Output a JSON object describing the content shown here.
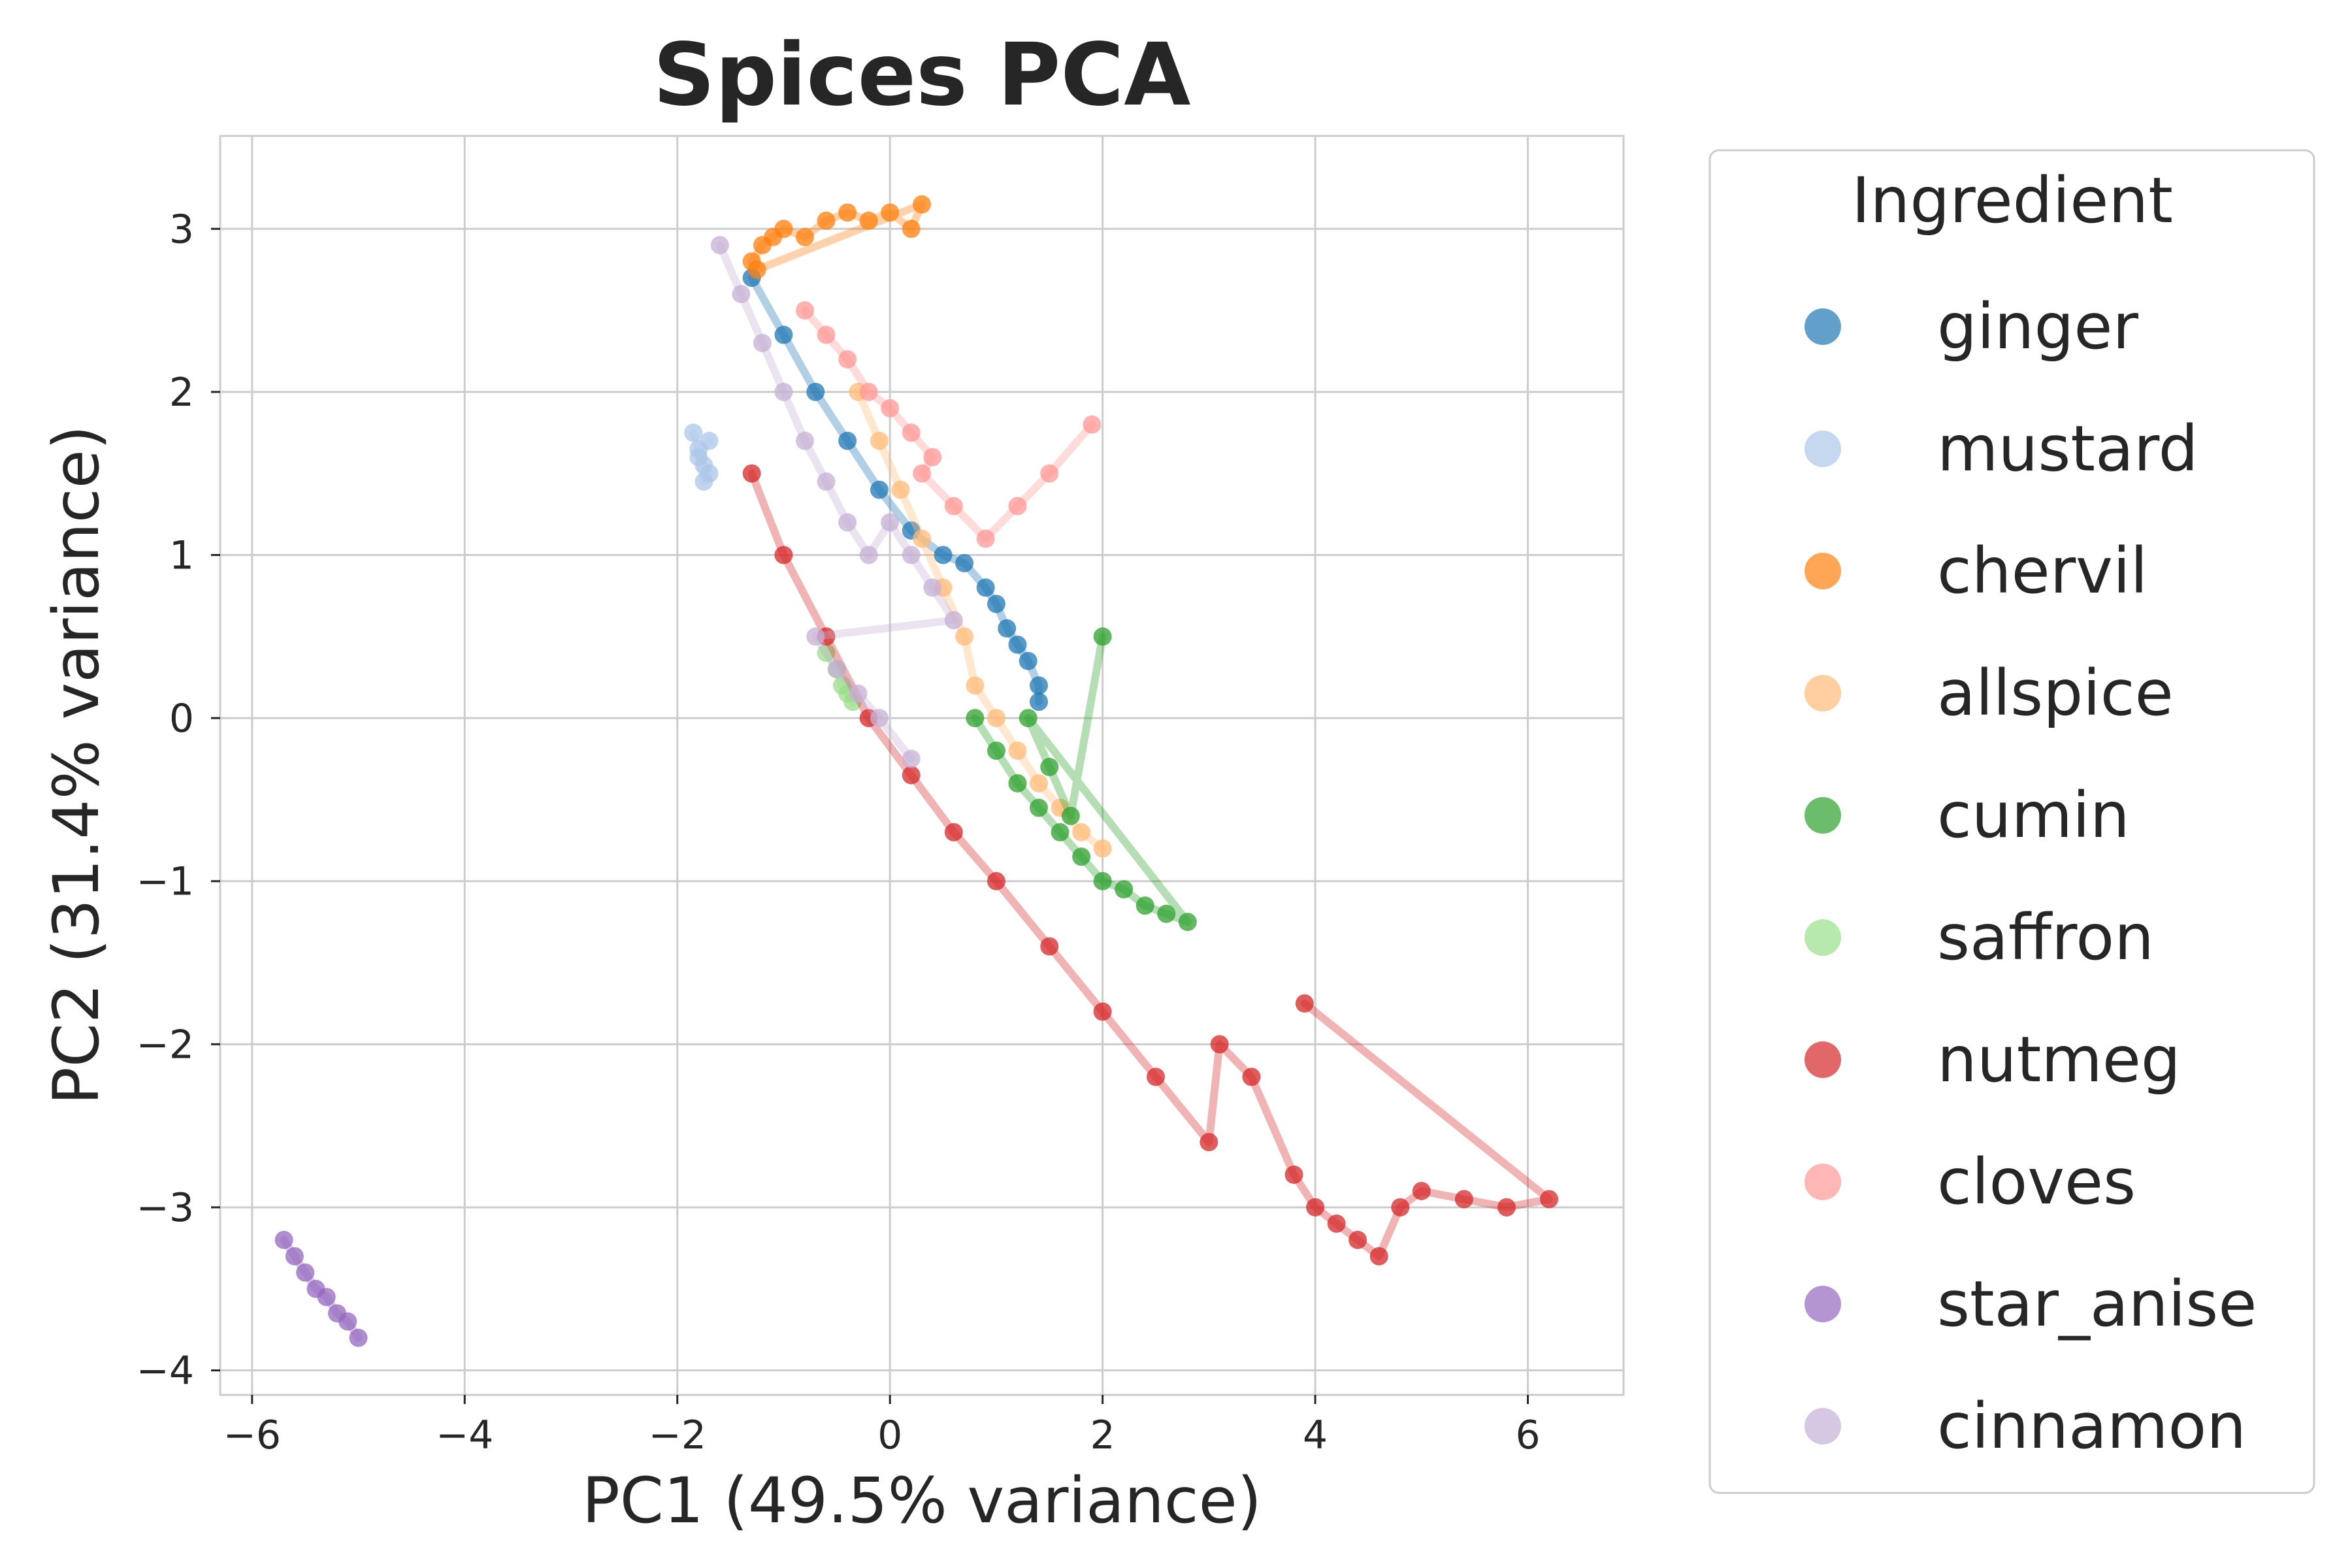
{
  "chart_data": {
    "type": "scatter",
    "title": "Spices PCA",
    "xlabel": "PC1 (49.5% variance)",
    "ylabel": "PC2 (31.4% variance)",
    "xlim": [
      -6.3,
      6.9
    ],
    "ylim": [
      -4.15,
      3.57
    ],
    "xticks": [
      -6,
      -4,
      -2,
      0,
      2,
      4,
      6
    ],
    "yticks": [
      -4,
      -3,
      -2,
      -1,
      0,
      1,
      2,
      3
    ],
    "xtick_labels": [
      "−6",
      "−4",
      "−2",
      "0",
      "2",
      "4",
      "6"
    ],
    "ytick_labels": [
      "−4",
      "−3",
      "−2",
      "−1",
      "0",
      "1",
      "2",
      "3"
    ],
    "grid": true,
    "legend": {
      "title": "Ingredient",
      "placement": "outside-right"
    },
    "series": [
      {
        "name": "ginger",
        "color": "#1f77b4",
        "x": [
          -1.3,
          -1.0,
          -0.7,
          -0.4,
          -0.1,
          0.2,
          0.5,
          0.7,
          0.9,
          1.0,
          1.1,
          1.2,
          1.3,
          1.4,
          1.4
        ],
        "y": [
          2.7,
          2.35,
          2.0,
          1.7,
          1.4,
          1.15,
          1.0,
          0.95,
          0.8,
          0.7,
          0.55,
          0.45,
          0.35,
          0.2,
          0.1
        ]
      },
      {
        "name": "mustard",
        "color": "#aec7e8",
        "x": [
          -1.85,
          -1.8,
          -1.75,
          -1.7,
          -1.75,
          -1.8,
          -1.7
        ],
        "y": [
          1.75,
          1.65,
          1.55,
          1.5,
          1.45,
          1.6,
          1.7
        ]
      },
      {
        "name": "chervil",
        "color": "#ff7f0e",
        "x": [
          -1.3,
          -1.2,
          -1.1,
          -1.0,
          -0.8,
          -0.6,
          -0.4,
          -0.2,
          0.0,
          0.2,
          0.3,
          -1.25
        ],
        "y": [
          2.8,
          2.9,
          2.95,
          3.0,
          2.95,
          3.05,
          3.1,
          3.05,
          3.1,
          3.0,
          3.15,
          2.75
        ]
      },
      {
        "name": "allspice",
        "color": "#ffbb78",
        "x": [
          -0.3,
          -0.1,
          0.1,
          0.3,
          0.5,
          0.7,
          0.8,
          1.0,
          1.2,
          1.4,
          1.6,
          1.8,
          2.0
        ],
        "y": [
          2.0,
          1.7,
          1.4,
          1.1,
          0.8,
          0.5,
          0.2,
          0.0,
          -0.2,
          -0.4,
          -0.55,
          -0.7,
          -0.8
        ]
      },
      {
        "name": "cumin",
        "color": "#2ca02c",
        "x": [
          0.8,
          1.0,
          1.2,
          1.4,
          1.6,
          1.8,
          2.0,
          2.2,
          2.4,
          2.6,
          2.8,
          1.3,
          1.5,
          1.7,
          2.0
        ],
        "y": [
          0.0,
          -0.2,
          -0.4,
          -0.55,
          -0.7,
          -0.85,
          -1.0,
          -1.05,
          -1.15,
          -1.2,
          -1.25,
          0.0,
          -0.3,
          -0.6,
          0.5
        ]
      },
      {
        "name": "saffron",
        "color": "#98df8a",
        "x": [
          -0.6,
          -0.5,
          -0.45,
          -0.4,
          -0.35
        ],
        "y": [
          0.4,
          0.3,
          0.2,
          0.15,
          0.1
        ]
      },
      {
        "name": "nutmeg",
        "color": "#d62728",
        "x": [
          -1.3,
          -1.0,
          -0.6,
          -0.2,
          0.2,
          0.6,
          1.0,
          1.5,
          2.0,
          2.5,
          3.0,
          3.1,
          3.4,
          3.8,
          4.0,
          4.2,
          4.4,
          4.6,
          4.8,
          5.0,
          5.4,
          5.8,
          6.2,
          3.9
        ],
        "y": [
          1.5,
          1.0,
          0.5,
          0.0,
          -0.35,
          -0.7,
          -1.0,
          -1.4,
          -1.8,
          -2.2,
          -2.6,
          -2.0,
          -2.2,
          -2.8,
          -3.0,
          -3.1,
          -3.2,
          -3.3,
          -3.0,
          -2.9,
          -2.95,
          -3.0,
          -2.95,
          -1.75
        ]
      },
      {
        "name": "cloves",
        "color": "#ff9896",
        "x": [
          -0.8,
          -0.6,
          -0.4,
          -0.2,
          0.0,
          0.2,
          0.4,
          0.3,
          0.6,
          0.9,
          1.2,
          1.5,
          1.9
        ],
        "y": [
          2.5,
          2.35,
          2.2,
          2.0,
          1.9,
          1.75,
          1.6,
          1.5,
          1.3,
          1.1,
          1.3,
          1.5,
          1.8
        ]
      },
      {
        "name": "star_anise",
        "color": "#9467bd",
        "x": [
          -5.7,
          -5.6,
          -5.5,
          -5.4,
          -5.3,
          -5.2,
          -5.1,
          -5.0
        ],
        "y": [
          -3.2,
          -3.3,
          -3.4,
          -3.5,
          -3.55,
          -3.65,
          -3.7,
          -3.8
        ]
      },
      {
        "name": "cinnamon",
        "color": "#c5b0d5",
        "x": [
          -1.6,
          -1.4,
          -1.2,
          -1.0,
          -0.8,
          -0.6,
          -0.4,
          -0.2,
          0.0,
          0.2,
          0.4,
          0.6,
          -0.7,
          -0.5,
          -0.3,
          -0.1,
          0.2
        ],
        "y": [
          2.9,
          2.6,
          2.3,
          2.0,
          1.7,
          1.45,
          1.2,
          1.0,
          1.2,
          1.0,
          0.8,
          0.6,
          0.5,
          0.3,
          0.15,
          0.0,
          -0.25
        ]
      }
    ]
  }
}
